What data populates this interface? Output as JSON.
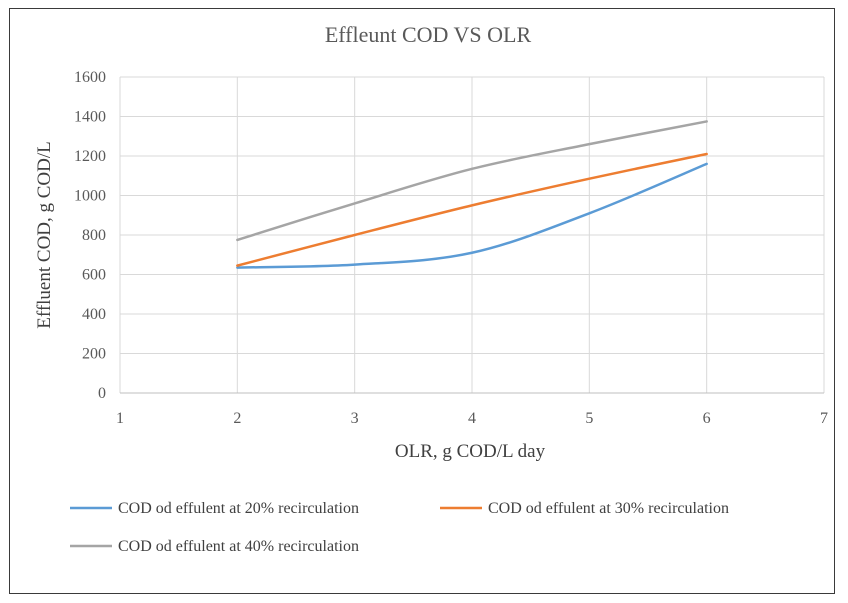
{
  "chart_data": {
    "type": "line",
    "title": "Effleunt COD VS OLR",
    "xlabel": "OLR, g COD/L day",
    "ylabel": "Effluent COD, g COD/L",
    "xlim": [
      1,
      7
    ],
    "ylim": [
      0,
      1600
    ],
    "x_ticks": [
      "1",
      "2",
      "3",
      "4",
      "5",
      "6",
      "7"
    ],
    "y_ticks": [
      "0",
      "200",
      "400",
      "600",
      "800",
      "1000",
      "1200",
      "1400",
      "1600"
    ],
    "grid": true,
    "legend_position": "bottom",
    "x": [
      2,
      3,
      4,
      5,
      6
    ],
    "series": [
      {
        "name": "COD od effulent at 20% recirculation",
        "color": "#5B9BD5",
        "values": [
          635,
          650,
          710,
          910,
          1160
        ]
      },
      {
        "name": "COD od effulent at 30% recirculation",
        "color": "#ED7D31",
        "values": [
          645,
          800,
          950,
          1085,
          1210
        ]
      },
      {
        "name": "COD od effulent at 40% recirculation",
        "color": "#A5A5A5",
        "values": [
          775,
          960,
          1135,
          1260,
          1375
        ]
      }
    ]
  }
}
